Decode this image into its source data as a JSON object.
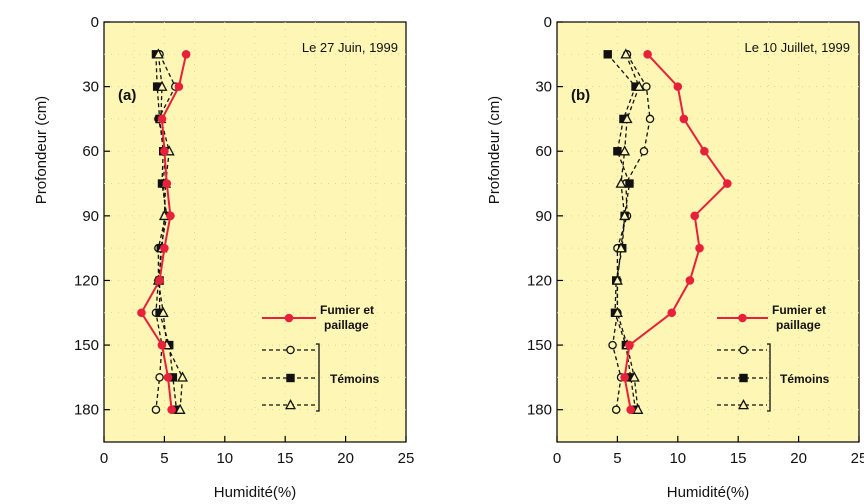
{
  "colors": {
    "plot_background": "#fdf6b4",
    "treatment": "#e8203a",
    "control": "#111111",
    "grid_dots": "#d8d3a0"
  },
  "legend": {
    "treatment_label_line1": "Fumier et",
    "treatment_label_line2": "paillage",
    "controls_label": "Témoins"
  },
  "chart_data": [
    {
      "type": "line",
      "panel": "(a)",
      "annotation": "Le 27 Juin, 1999",
      "xlabel": "Humidité(%)",
      "ylabel": "Profondeur (cm)",
      "xlim": [
        0,
        25
      ],
      "ylim": [
        0,
        195
      ],
      "y_inverted": true,
      "x_ticks": [
        0,
        5,
        10,
        15,
        20,
        25
      ],
      "y_ticks": [
        0,
        30,
        60,
        90,
        120,
        150,
        180
      ],
      "grid": "dotted",
      "legend_position": "right",
      "series": [
        {
          "name": "Fumier et paillage",
          "marker": "filled-circle",
          "depth": [
            15,
            30,
            45,
            60,
            75,
            90,
            105,
            120,
            135,
            150,
            165,
            180
          ],
          "humidity": [
            6.8,
            6.2,
            4.8,
            5.0,
            5.2,
            5.5,
            5.0,
            4.6,
            3.1,
            4.8,
            5.3,
            5.6
          ]
        },
        {
          "name": "Témoins",
          "marker": "open-circle",
          "depth": [
            15,
            30,
            45,
            60,
            75,
            90,
            105,
            120,
            135,
            150,
            165,
            180
          ],
          "humidity": [
            4.6,
            5.9,
            4.5,
            5.1,
            4.9,
            5.1,
            4.5,
            4.5,
            4.3,
            4.8,
            4.6,
            4.3
          ]
        },
        {
          "name": "Témoins",
          "marker": "filled-square",
          "depth": [
            15,
            30,
            45,
            60,
            75,
            90,
            105,
            120,
            135,
            150,
            165,
            180
          ],
          "humidity": [
            4.3,
            4.4,
            4.6,
            4.9,
            4.8,
            5.2,
            4.7,
            4.6,
            4.6,
            5.4,
            5.7,
            6.0
          ]
        },
        {
          "name": "Témoins",
          "marker": "open-triangle",
          "depth": [
            15,
            30,
            45,
            60,
            75,
            90,
            105,
            120,
            135,
            150,
            165,
            180
          ],
          "humidity": [
            4.5,
            4.8,
            4.7,
            5.4,
            5.1,
            5.0,
            4.8,
            4.5,
            4.9,
            5.2,
            6.5,
            6.3
          ]
        }
      ]
    },
    {
      "type": "line",
      "panel": "(b)",
      "annotation": "Le 10 Juillet, 1999",
      "xlabel": "Humidité(%)",
      "ylabel": "Profondeur (cm)",
      "xlim": [
        0,
        25
      ],
      "ylim": [
        0,
        195
      ],
      "y_inverted": true,
      "x_ticks": [
        0,
        5,
        10,
        15,
        20,
        25
      ],
      "y_ticks": [
        0,
        30,
        60,
        90,
        120,
        150,
        180
      ],
      "grid": "dotted",
      "legend_position": "right",
      "series": [
        {
          "name": "Fumier et paillage",
          "marker": "filled-circle",
          "depth": [
            15,
            30,
            45,
            60,
            75,
            90,
            105,
            120,
            135,
            150,
            165,
            180
          ],
          "humidity": [
            7.5,
            10.0,
            10.5,
            12.2,
            14.1,
            11.4,
            11.8,
            11.0,
            9.5,
            6.0,
            5.6,
            6.1
          ]
        },
        {
          "name": "Témoins",
          "marker": "open-circle",
          "depth": [
            15,
            30,
            45,
            60,
            75,
            90,
            105,
            120,
            135,
            150,
            165,
            180
          ],
          "humidity": [
            5.8,
            7.4,
            7.7,
            7.2,
            5.7,
            5.8,
            5.0,
            5.0,
            5.0,
            4.6,
            5.3,
            4.9
          ]
        },
        {
          "name": "Témoins",
          "marker": "filled-square",
          "depth": [
            15,
            30,
            45,
            60,
            75,
            90,
            105,
            120,
            135,
            150,
            165,
            180
          ],
          "humidity": [
            4.2,
            6.5,
            5.5,
            5.0,
            6.0,
            5.6,
            5.4,
            4.9,
            4.8,
            5.7,
            6.1,
            6.5
          ]
        },
        {
          "name": "Témoins",
          "marker": "open-triangle",
          "depth": [
            15,
            30,
            45,
            60,
            75,
            90,
            105,
            120,
            135,
            150,
            165,
            180
          ],
          "humidity": [
            5.7,
            6.8,
            5.8,
            5.6,
            5.3,
            5.6,
            5.3,
            5.0,
            5.0,
            5.8,
            6.4,
            6.7
          ]
        }
      ]
    }
  ]
}
